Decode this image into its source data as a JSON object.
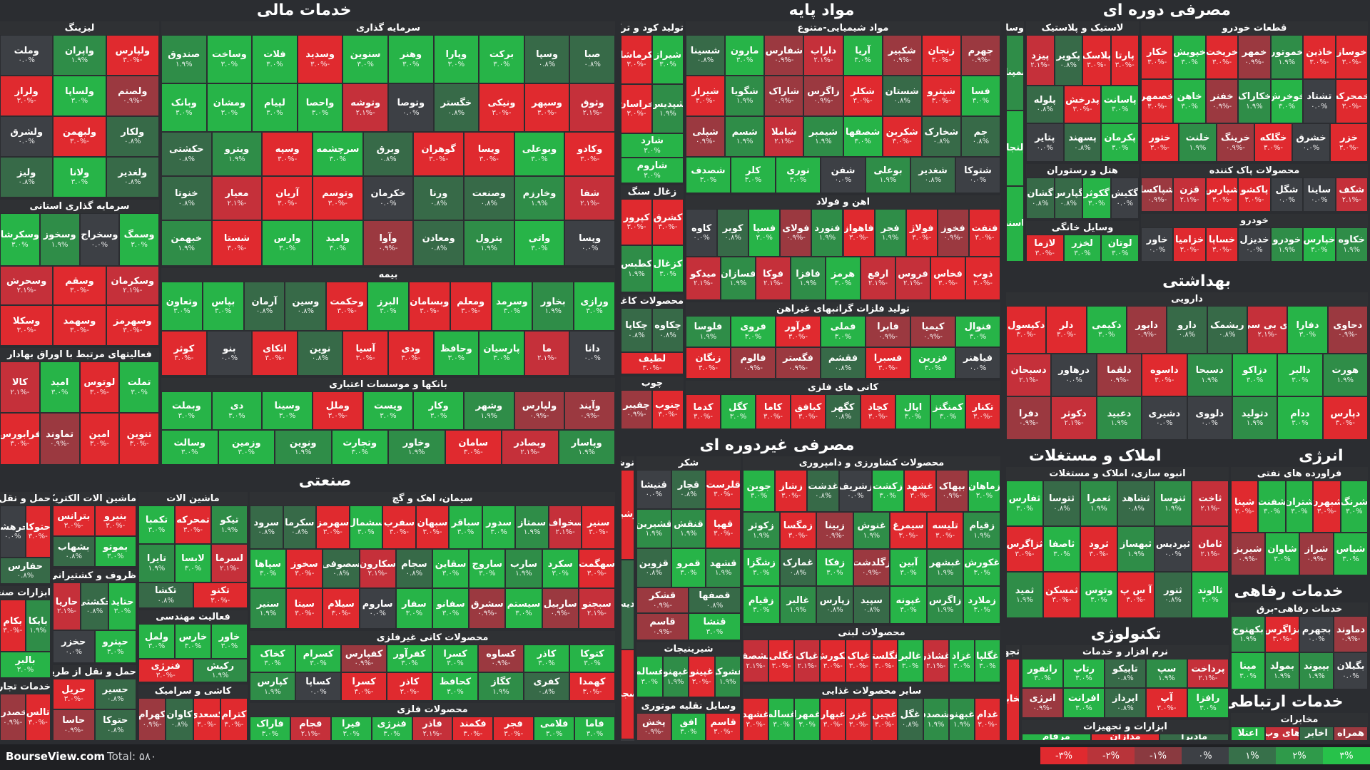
{
  "footer": {
    "site": "BourseView.com",
    "total": "Total: ۵۸۰"
  },
  "legend": [
    {
      "label": "-۳%",
      "color": "#e02a2f"
    },
    {
      "label": "-۲%",
      "color": "#b8343a"
    },
    {
      "label": "-۱%",
      "color": "#8a3a40"
    },
    {
      "label": "۰%",
      "color": "#3d4045"
    },
    {
      "label": "۱%",
      "color": "#37704a"
    },
    {
      "label": "۲%",
      "color": "#2f9a4a"
    },
    {
      "label": "۳%",
      "color": "#27c24a"
    }
  ],
  "chart_data": {
    "type": "treemap",
    "sectors": [
      {
        "name": "خدمات مالی",
        "industries": [
          {
            "name": "سرمایه گذاری",
            "stocks": [
              "صبا",
              "وسپا",
              "برکت",
              "وپارا",
              "وهنر",
              "سنوین",
              "وسدید",
              "فلات",
              "وساخت",
              "صندوق",
              "وثوق",
              "وسپهر",
              "ونیکی",
              "خگستر",
              "وتوصا",
              "وتوشه",
              "واحصا",
              "لپیام",
              "ومشان",
              "وبانک",
              "وکادو",
              "وبوعلی",
              "ویسا",
              "گوهران",
              "وبرق",
              "سرچشمه",
              "وسپه",
              "ویترو",
              "حکشتی",
              "شفا",
              "وخارزم",
              "وصنعت",
              "ورنا",
              "خکرمان",
              "وتوسم",
              "آریان",
              "معیار",
              "خنوتا",
              "وپسا",
              "واتی",
              "پترول",
              "ومعادن",
              "وآوا",
              "وامید",
              "وارس",
              "شستا",
              "خبهمن"
            ]
          },
          {
            "name": "بیمه",
            "stocks": [
              "ورازی",
              "بخاور",
              "وسرمد",
              "ومعلم",
              "وبسامان",
              "البرز",
              "وحکمت",
              "وسین",
              "آرمان",
              "بپاس",
              "وتعاون",
              "دانا",
              "ما",
              "پارسیان",
              "وحافظ",
              "ودی",
              "آسیا",
              "نوین",
              "اتکای",
              "بنو",
              "کوثر"
            ]
          },
          {
            "name": "بانکها و موسسات اعتباری",
            "stocks": [
              "وآیند",
              "ولپارس",
              "وشهر",
              "وکار",
              "ویست",
              "وملل",
              "وسینا",
              "دی",
              "وبملت",
              "وپاسار",
              "وبصادر",
              "سامان",
              "وخاور",
              "وتجارت",
              "ونوین",
              "وزمین",
              "وسالت"
            ]
          },
          {
            "name": "لیزینگ",
            "stocks": [
              "ولپارس",
              "واپران",
              "وملت",
              "ولصنم",
              "ولساپا",
              "ولراز",
              "ولکار",
              "ولبهمن",
              "ولشرق",
              "ولغدیر",
              "ولانا",
              "ولیز"
            ]
          },
          {
            "name": "سرمایه گذاری استانی",
            "stocks": [
              "وسمگ",
              "وسخراج",
              "وسخوز",
              "وسکرشا",
              "وسکرمان",
              "وسقم",
              "وسحرش",
              "وسهرمز",
              "وسهمد",
              "وسکلا"
            ]
          },
          {
            "name": "فعالیتهای مرتبط با اوراق بهادار",
            "stocks": [
              "تملت",
              "لوتوس",
              "امید",
              "کالا",
              "تنوین",
              "امین",
              "تماوند",
              "فرابورس"
            ]
          }
        ]
      },
      {
        "name": "مواد پایه",
        "industries": [
          {
            "name": "مواد شیمیایی-متنوع",
            "stocks": [
              "جهرم",
              "زنجان",
              "شکبیر",
              "آریا",
              "داراب",
              "شفارس",
              "مارون",
              "شسینا",
              "فسا",
              "شپترو",
              "شستان",
              "شکلر",
              "زاگرس",
              "شاراک",
              "شگویا",
              "شیراز",
              "جم",
              "شخارک",
              "شکربن",
              "شصفها",
              "شیمبر",
              "شاملا",
              "شسم",
              "شپلی",
              "شتوکا",
              "شغدیر",
              "بوعلی",
              "شفن",
              "نوری",
              "کلر",
              "شصدف"
            ]
          },
          {
            "name": "اهن و فولاد",
            "stocks": [
              "فنفت",
              "فخوز",
              "فولاژ",
              "فجر",
              "فاهواز",
              "فنورد",
              "فولای",
              "فسپا",
              "کویر",
              "کاوه",
              "ذوب",
              "فخاس",
              "فروس",
              "ارفع",
              "هرمز",
              "فافزا",
              "فوکا",
              "فسازان",
              "میدکو"
            ]
          },
          {
            "name": "تولید فلزات گرانبهای غیراهن",
            "stocks": [
              "فنوال",
              "کیمیا",
              "فابرا",
              "فملی",
              "فرآور",
              "فروی",
              "فلوسا",
              "فیاهنر",
              "فزرین",
              "فسبرا",
              "فقشم",
              "فگستر",
              "فالوم",
              "زنگان"
            ]
          },
          {
            "name": "کانی های فلزی",
            "stocks": [
              "تکنار",
              "کمنگنز",
              "اپال",
              "کچاد",
              "کگهر",
              "کبافق",
              "کاما",
              "کگل",
              "کدما"
            ]
          },
          {
            "name": "تولید کود و ترکیبات نیتروژن",
            "stocks": [
              "شیراز",
              "کرماشا",
              "شپدیس",
              "خراسان",
              "شارد",
              "شاروم"
            ]
          },
          {
            "name": "زغال سنگ",
            "stocks": [
              "کشرق",
              "کپرور",
              "کزغال",
              "کطبس"
            ]
          },
          {
            "name": "محصولات کاغذی",
            "stocks": [
              "چکاوه",
              "چکاپا",
              "لطیف"
            ]
          },
          {
            "name": "چوب",
            "stocks": [
              "چنوب",
              "چفیبر"
            ]
          }
        ]
      },
      {
        "name": "مصرفی دوره ای",
        "industries": [
          {
            "name": "قطعات خودرو",
            "stocks": [
              "خوساز",
              "خاذین",
              "خموتور",
              "خمهر",
              "خریخت",
              "خپویش",
              "خکار",
              "خمحرکه",
              "تشتاد",
              "خوخرش",
              "خکاراک",
              "خفنر",
              "خاهن",
              "خصمهر",
              "خزر",
              "خشرق",
              "خگلکه",
              "خرینگ",
              "خلنت",
              "ختور"
            ]
          },
          {
            "name": "محصولات پاک کننده",
            "stocks": [
              "شکف",
              "ساینا",
              "شگل",
              "پاکشو",
              "شپارس",
              "قزن",
              "شپاکسا"
            ]
          },
          {
            "name": "خودرو",
            "stocks": [
              "خکاوه",
              "خپارس",
              "خودرو",
              "خدیزل",
              "خساپا",
              "خزامیا",
              "خاور"
            ]
          },
          {
            "name": "لاستیک و پلاستیک",
            "stocks": [
              "پارتا",
              "پلاسک",
              "پکویر",
              "پیزد",
              "پاسانت",
              "پدرخش",
              "پلوله",
              "پکرمان",
              "پسهند",
              "پتایر"
            ]
          },
          {
            "name": "هتل و رستوران",
            "stocks": [
              "گکیش",
              "گکوثر",
              "گپارس",
              "گشان"
            ]
          },
          {
            "name": "وسایل خانگی",
            "stocks": [
              "لوتان",
              "لخزر",
              "لازما"
            ]
          },
          {
            "name": "وسایل نقلیه موتوری",
            "stocks": [
              "بمپنا",
              "ولنجار",
              "چاسنت"
            ]
          }
        ]
      },
      {
        "name": "بهداشتی",
        "industries": [
          {
            "name": "دارویی",
            "stocks": [
              "دحاوی",
              "دفارا",
              "دی بی سی",
              "ریشمک",
              "دارو",
              "دابور",
              "دکیمی",
              "دلر",
              "دکپسول",
              "هورت",
              "دالبر",
              "دزاکو",
              "دسبحا",
              "داسوه",
              "دلقما",
              "درهاور",
              "دسبحان",
              "دپارس",
              "ددام",
              "دتولید",
              "دلووی",
              "دشیری",
              "دعبید",
              "دکوثر",
              "دفرا"
            ]
          }
        ]
      },
      {
        "name": "املاک و مستغلات",
        "industries": [
          {
            "name": "انبوه سازی، املاک و مستغلات",
            "stocks": [
              "ثاخت",
              "ثنوسا",
              "ثشاهد",
              "ثعمرا",
              "ثتوسا",
              "ثفارس",
              "ثامان",
              "ثپردیس",
              "ثبهساز",
              "ثرود",
              "ثاصفا",
              "ثزاگرس",
              "ثالوند",
              "ثنور",
              "آ س پ",
              "وتوس",
              "ثمسکن",
              "ثمید"
            ]
          }
        ]
      },
      {
        "name": "انرژی",
        "industries": [
          {
            "name": "فراورده های نفتی",
            "stocks": [
              "شرنگ",
              "شبهرن",
              "شتران",
              "شفنت",
              "شپنا",
              "شپاس",
              "شراز",
              "شاوان",
              "شبریز"
            ]
          }
        ]
      },
      {
        "name": "خدمات رفاهی",
        "industries": [
          {
            "name": "خدمات رفاهی-برق",
            "stocks": [
              "دماوند",
              "بجهرم",
              "بزاگرس",
              "بکهنوج",
              "بگیلان",
              "بپیوند",
              "بمولد",
              "مپنا"
            ]
          }
        ]
      },
      {
        "name": "خدمات ارتباطی",
        "industries": [
          {
            "name": "مخابرات",
            "stocks": [
              "همراه",
              "اخابر",
              "های وب",
              "اعتلا"
            ]
          }
        ]
      },
      {
        "name": "صنعتی",
        "industries": [
          {
            "name": "سیمان، اهک و گچ",
            "stocks": [
              "سنیر",
              "سخواف",
              "سمتاز",
              "سدور",
              "سباقر",
              "سبهان",
              "سفرب",
              "سشمال",
              "سهرمز",
              "سکرما",
              "سرود",
              "سهگمت",
              "سکرد",
              "سارب",
              "ساروج",
              "سقاین",
              "سجام",
              "سکارون",
              "سصوفی",
              "سخوز",
              "سپاها",
              "سبجنو",
              "ساربیل",
              "سیستم",
              "سشرق",
              "سفانو",
              "سفار",
              "ساروم",
              "سیلام",
              "سیتا",
              "سنیر"
            ]
          },
          {
            "name": "محصولات کانی غیرفلزی",
            "stocks": [
              "کتوکا",
              "کاذر",
              "کساوه",
              "کسرا",
              "کفرآور",
              "کفپارس",
              "کسرام",
              "کخاک",
              "کهمدا",
              "کفری",
              "کگاز",
              "کحافظ",
              "کاذر",
              "کسرا",
              "کساپا",
              "کپارس"
            ]
          },
          {
            "name": "محصولات فلزی",
            "stocks": [
              "فاما",
              "فلامی",
              "فجر",
              "فکمند",
              "فاذر",
              "فنرژی",
              "فیرا",
              "فجام",
              "فاراک"
            ]
          },
          {
            "name": "ماشین الات",
            "stocks": [
              "تیکو",
              "تمحرکه",
              "تکمبا",
              "لسرما",
              "لابسا",
              "تایرا",
              "تکنو",
              "تکشا"
            ]
          },
          {
            "name": "فعالیت مهندسی",
            "stocks": [
              "خاور",
              "خارس",
              "ولمل",
              "رکیش",
              "فنرژی"
            ]
          },
          {
            "name": "کاشی و سرامیک",
            "stocks": [
              "کترام",
              "کسعدی",
              "کاوان",
              "کهرام"
            ]
          },
          {
            "name": "ماشین الات الکتریکی",
            "stocks": [
              "بنیرو",
              "بترانس",
              "بموتو",
              "بشهاب"
            ]
          },
          {
            "name": "ظروف و کشتیرانی",
            "stocks": [
              "حتاید",
              "حکشتی",
              "حاریا",
              "حپترو",
              "حخزر"
            ]
          },
          {
            "name": "حمل و نقل از طریق خطوط راه اهن",
            "stocks": [
              "حسیر",
              "حریل",
              "حتوکا",
              "حاسا"
            ]
          },
          {
            "name": "حمل و نقل بار زمینی",
            "stocks": [
              "حتوکا",
              "حرهشا",
              "حفارس"
            ]
          },
          {
            "name": "ابزارات صنعتی",
            "stocks": [
              "بایکا",
              "بکام",
              "بالبر"
            ]
          },
          {
            "name": "خدمات تجاری صنعتی",
            "stocks": [
              "تالس",
              "خصدرا"
            ]
          }
        ]
      },
      {
        "name": "مصرفی غیردوره ای",
        "industries": [
          {
            "name": "محصولات کشاورزی و دامپروری",
            "stocks": [
              "زماهان",
              "بپهاک",
              "غشهد",
              "زکشت",
              "زشریف",
              "غدشت",
              "زشاز",
              "جوین",
              "زقیام",
              "تلیسه",
              "سیمرغ",
              "غنوش",
              "زبینا",
              "زمگسا",
              "زکوثر",
              "غکورش",
              "غبشهر",
              "آبین",
              "زگلدشت",
              "زفکا",
              "غمارک",
              "زشگزا",
              "زملارد",
              "زاگرس",
              "غپونه",
              "سپید",
              "زپارس",
              "غالبر",
              "زقیام"
            ]
          },
          {
            "name": "محصولات لبنی",
            "stocks": [
              "غگلپا",
              "غزاد",
              "غشاذر",
              "غالبر",
              "غگلستا",
              "غپاک",
              "غکورش",
              "غیاک",
              "غگلی",
              "غشصفا"
            ]
          },
          {
            "name": "سایر محصولات غذایی",
            "stocks": [
              "غدام",
              "غبهنو",
              "غشصدف",
              "غگل",
              "غچین",
              "غزر",
              "غبهار",
              "غمهرا",
              "غسالم",
              "غشهد"
            ]
          },
          {
            "name": "شکر",
            "stocks": [
              "قلرست",
              "قچار",
              "قنیشا",
              "قهپا",
              "قنقش",
              "قشیرین",
              "قشهد",
              "قمرو",
              "قزوین",
              "قصفها",
              "قشکر",
              "قتشا",
              "قاسم"
            ]
          },
          {
            "name": "شیرینیجات",
            "stocks": [
              "غشوکو",
              "غپینو",
              "غبهنو",
              "غسالم"
            ]
          },
          {
            "name": "وسایل نقلیه موتوری",
            "stocks": [
              "قاسم",
              "افق",
              "پخش"
            ]
          },
          {
            "name": "نوشیدنی",
            "stocks": [
              "نوشینا",
              "غدیس",
              "نسجی"
            ]
          }
        ]
      },
      {
        "name": "تکنولوژی",
        "industries": [
          {
            "name": "نرم افزار و خدمات",
            "stocks": [
              "پرداخت",
              "سپ",
              "تاپیکو",
              "رتاپ",
              "رانفور",
              "رافزا",
              "آپ",
              "اپرداز",
              "افرانت",
              "انرژی"
            ]
          },
          {
            "name": "ابزارات و تجهیزات",
            "stocks": [
              "مادیرا",
              "مدازان",
              "مرقام"
            ]
          },
          {
            "name": "تجهیزات مخابراتی",
            "stocks": [
              "مخابر"
            ]
          }
        ]
      }
    ]
  }
}
